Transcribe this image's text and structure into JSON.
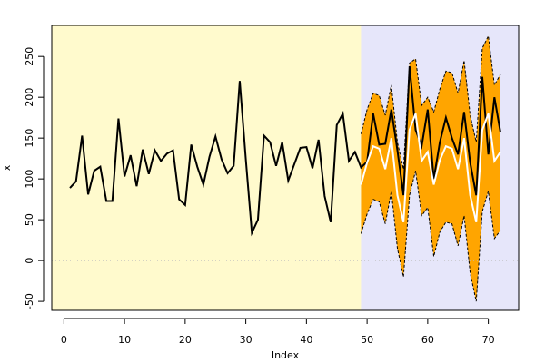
{
  "chart_data": {
    "type": "line",
    "x_label": "Index",
    "y_label": "x",
    "xlim": [
      -2,
      75
    ],
    "ylim": [
      -61,
      288
    ],
    "xticks": [
      0,
      10,
      20,
      30,
      40,
      50,
      60,
      70
    ],
    "yticks": [
      -50,
      0,
      50,
      100,
      150,
      200,
      250
    ],
    "regions": [
      {
        "from": -2,
        "to": 49,
        "color": "#fffacd"
      },
      {
        "from": 49,
        "to": 75,
        "color": "#e6e6fa"
      }
    ],
    "hline": 0,
    "x": [
      1,
      2,
      3,
      4,
      5,
      6,
      7,
      8,
      9,
      10,
      11,
      12,
      13,
      14,
      15,
      16,
      17,
      18,
      19,
      20,
      21,
      22,
      23,
      24,
      25,
      26,
      27,
      28,
      29,
      30,
      31,
      32,
      33,
      34,
      35,
      36,
      37,
      38,
      39,
      40,
      41,
      42,
      43,
      44,
      45,
      46,
      47,
      48,
      49,
      50,
      51,
      52,
      53,
      54,
      55,
      56,
      57,
      58,
      59,
      60,
      61,
      62,
      63,
      64,
      65,
      66,
      67,
      68,
      69,
      70,
      71,
      72
    ],
    "band": {
      "color": "#ffa500",
      "upper": [
        null,
        null,
        null,
        null,
        null,
        null,
        null,
        null,
        null,
        null,
        null,
        null,
        null,
        null,
        null,
        null,
        null,
        null,
        null,
        null,
        null,
        null,
        null,
        null,
        null,
        null,
        null,
        null,
        null,
        null,
        null,
        null,
        null,
        null,
        null,
        null,
        null,
        null,
        null,
        null,
        null,
        null,
        null,
        null,
        null,
        null,
        null,
        null,
        155,
        185,
        205,
        202,
        178,
        215,
        145,
        112,
        242,
        247,
        190,
        200,
        182,
        210,
        232,
        230,
        205,
        245,
        178,
        145,
        260,
        275,
        215,
        228
      ],
      "lower": [
        null,
        null,
        null,
        null,
        null,
        null,
        null,
        null,
        null,
        null,
        null,
        null,
        null,
        null,
        null,
        null,
        null,
        null,
        null,
        null,
        null,
        null,
        null,
        null,
        null,
        null,
        null,
        null,
        null,
        null,
        null,
        null,
        null,
        null,
        null,
        null,
        null,
        null,
        null,
        null,
        null,
        null,
        null,
        null,
        null,
        null,
        null,
        null,
        33,
        57,
        75,
        72,
        45,
        85,
        15,
        -20,
        80,
        110,
        55,
        65,
        5,
        35,
        47,
        45,
        18,
        55,
        -15,
        -50,
        60,
        85,
        27,
        37
      ]
    },
    "series": [
      {
        "color": "#000000",
        "values": [
          89,
          97,
          153,
          81,
          110,
          115,
          73,
          73,
          174,
          103,
          129,
          91,
          136,
          106,
          135,
          122,
          131,
          135,
          75,
          68,
          142,
          115,
          93,
          127,
          152,
          124,
          107,
          116,
          220,
          124,
          34,
          50,
          153,
          145,
          116,
          145,
          98,
          118,
          138,
          139,
          113,
          148,
          79,
          47,
          166,
          180,
          122,
          133,
          114,
          121,
          180,
          142,
          143,
          185,
          135,
          80,
          238,
          160,
          140,
          185,
          100,
          145,
          175,
          150,
          130,
          182,
          120,
          80,
          225,
          130,
          200,
          157
        ]
      },
      {
        "color": "#ffffff",
        "values": [
          null,
          null,
          null,
          null,
          null,
          null,
          null,
          null,
          null,
          null,
          null,
          null,
          null,
          null,
          null,
          null,
          null,
          null,
          null,
          null,
          null,
          null,
          null,
          null,
          null,
          null,
          null,
          null,
          null,
          null,
          null,
          null,
          null,
          null,
          null,
          null,
          null,
          null,
          null,
          null,
          null,
          null,
          null,
          null,
          null,
          null,
          null,
          null,
          93,
          120,
          140,
          137,
          112,
          150,
          80,
          47,
          160,
          180,
          122,
          133,
          93,
          123,
          140,
          137,
          112,
          150,
          80,
          47,
          160,
          180,
          122,
          133
        ]
      }
    ]
  }
}
